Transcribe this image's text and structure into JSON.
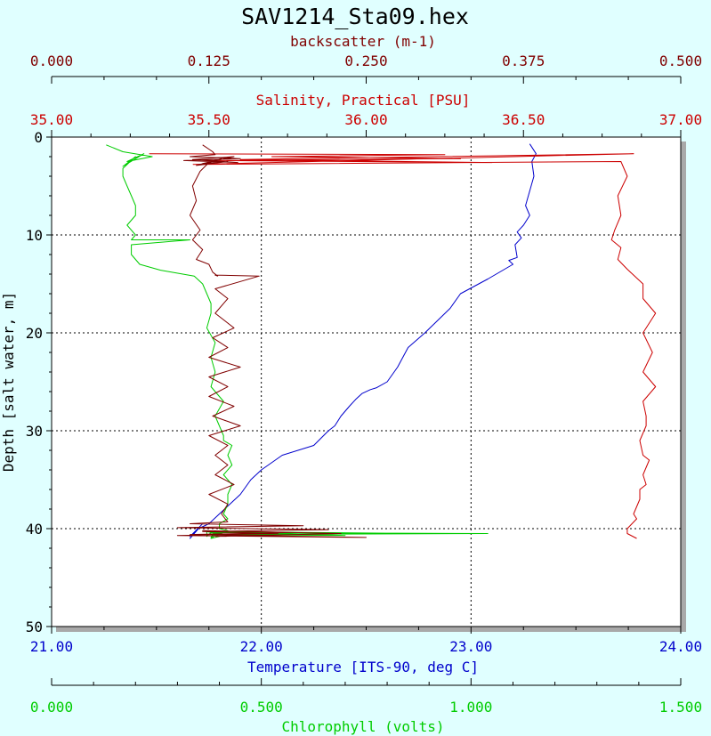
{
  "chart_data": {
    "type": "line",
    "title": "SAV1214_Sta09.hex",
    "colors": {
      "background": "#e0ffff",
      "plot_area": "#ffffff",
      "shadow": "#a9a9a9",
      "backscatter": "#800000",
      "salinity": "#cc0000",
      "temperature": "#0000cc",
      "chlorophyll": "#00cc00",
      "axis_text": "#000000"
    },
    "grid": true,
    "y_axis": {
      "label": "Depth [salt water, m]",
      "range": [
        0,
        50
      ],
      "inverted": true,
      "ticks": [
        "0",
        "10",
        "20",
        "30",
        "40",
        "50"
      ]
    },
    "x_axes": [
      {
        "id": "backscatter",
        "label": "backscatter (m-1)",
        "position": "top-outer",
        "range": [
          0,
          0.5
        ],
        "ticks": [
          "0.000",
          "0.125",
          "0.250",
          "0.375",
          "0.500"
        ]
      },
      {
        "id": "salinity",
        "label": "Salinity, Practical [PSU]",
        "position": "top-inner",
        "range": [
          35,
          37
        ],
        "ticks": [
          "35.00",
          "35.50",
          "36.00",
          "36.50",
          "37.00"
        ]
      },
      {
        "id": "temperature",
        "label": "Temperature [ITS-90, deg C]",
        "position": "bottom-inner",
        "range": [
          21,
          24
        ],
        "ticks": [
          "21.00",
          "22.00",
          "23.00",
          "24.00"
        ]
      },
      {
        "id": "chlorophyll",
        "label": "Chlorophyll (volts)",
        "position": "bottom-outer",
        "range": [
          0,
          1.5
        ],
        "ticks": [
          "0.000",
          "0.500",
          "1.000",
          "1.500"
        ]
      }
    ],
    "series": [
      {
        "axis": "temperature",
        "x": [
          23.28,
          23.31,
          23.29,
          23.3,
          23.28,
          23.26,
          23.28,
          23.25,
          23.22,
          23.24,
          23.21,
          23.22,
          23.18,
          23.2,
          23.08,
          22.95,
          22.9,
          22.78,
          22.7,
          22.65,
          22.6,
          22.55,
          22.52,
          22.48,
          22.45,
          22.42,
          22.38,
          22.35,
          22.32,
          22.25,
          22.1,
          22.0,
          21.95,
          21.9,
          21.85,
          21.8,
          21.75,
          21.7,
          21.68,
          21.66,
          21.7,
          21.66,
          21.72
        ],
        "y": [
          0.7,
          1.7,
          2.5,
          4.0,
          5.5,
          7.0,
          8.0,
          9.0,
          9.7,
          10.3,
          11.0,
          12.3,
          12.6,
          13.0,
          14.5,
          16.0,
          17.5,
          20.0,
          21.5,
          23.5,
          25.0,
          25.6,
          25.8,
          26.2,
          26.8,
          27.5,
          28.5,
          29.5,
          30.0,
          31.5,
          32.5,
          34.0,
          35.0,
          36.5,
          37.5,
          38.5,
          39.5,
          40.0,
          40.5,
          41.0,
          40.0,
          40.8,
          39.5
        ]
      },
      {
        "axis": "salinity",
        "x": [
          35.31,
          36.25,
          35.7,
          36.3,
          35.5,
          36.4,
          35.6,
          36.85,
          35.45,
          36.81,
          36.83,
          36.8,
          36.81,
          36.79,
          36.78,
          36.81,
          36.8,
          36.83,
          36.88,
          36.88,
          36.92,
          36.88,
          36.91,
          36.88,
          36.92,
          36.88,
          36.89,
          36.89,
          36.87,
          36.88,
          36.9,
          36.88,
          36.89,
          36.87,
          36.87,
          36.85,
          36.86,
          36.83,
          36.83,
          36.86
        ],
        "y": [
          1.7,
          1.8,
          2.0,
          2.2,
          2.4,
          2.6,
          2.3,
          1.7,
          2.8,
          2.5,
          4.0,
          6.0,
          8.0,
          9.5,
          10.5,
          11.3,
          12.5,
          13.5,
          15.0,
          16.5,
          18.0,
          20.0,
          22.0,
          24.0,
          25.5,
          27.0,
          28.5,
          29.5,
          31.0,
          32.5,
          33.0,
          34.5,
          35.5,
          36.0,
          37.0,
          38.5,
          39.0,
          40.0,
          40.5,
          41.0
        ]
      },
      {
        "axis": "chlorophyll",
        "x": [
          0.13,
          0.17,
          0.24,
          0.18,
          0.22,
          0.17,
          0.2,
          0.17,
          0.17,
          0.18,
          0.19,
          0.2,
          0.2,
          0.18,
          0.2,
          0.19,
          0.19,
          0.33,
          0.19,
          0.19,
          0.21,
          0.26,
          0.34,
          0.36,
          0.37,
          0.38,
          0.38,
          0.37,
          0.39,
          0.38,
          0.39,
          0.38,
          0.41,
          0.39,
          0.4,
          0.41,
          0.41,
          0.43,
          0.42,
          0.43,
          0.41,
          0.43,
          0.42,
          0.42,
          0.41,
          0.42,
          0.4,
          0.4,
          0.42,
          0.41,
          0.39,
          0.4,
          0.38,
          0.4,
          0.37,
          0.39,
          0.38,
          0.39,
          0.37,
          0.37,
          0.38,
          1.04,
          0.36,
          0.88,
          0.38,
          0.7,
          0.37
        ],
        "y": [
          0.8,
          1.5,
          2.0,
          2.5,
          1.7,
          3.0,
          2.0,
          3.2,
          4.0,
          5.0,
          6.0,
          7.0,
          8.0,
          9.0,
          10.0,
          10.5,
          10.5,
          10.5,
          11.0,
          12.0,
          13.0,
          13.6,
          14.2,
          15.0,
          16.0,
          17.0,
          18.0,
          19.5,
          21.0,
          22.5,
          24.0,
          25.5,
          27.0,
          28.5,
          29.5,
          30.5,
          31.0,
          31.5,
          32.5,
          33.5,
          34.5,
          35.5,
          36.5,
          37.5,
          38.5,
          39.0,
          39.5,
          40.0,
          40.2,
          40.4,
          40.6,
          40.8,
          41.0,
          40.4,
          40.7,
          40.2,
          40.9,
          40.5,
          40.3,
          40.8,
          40.4,
          40.5,
          40.6,
          40.5,
          40.3,
          40.7,
          40.6
        ]
      },
      {
        "axis": "backscatter",
        "x": [
          0.12,
          0.128,
          0.13,
          0.11,
          0.15,
          0.105,
          0.148,
          0.112,
          0.145,
          0.12,
          0.14,
          0.115,
          0.135,
          0.125,
          0.118,
          0.112,
          0.115,
          0.11,
          0.118,
          0.112,
          0.12,
          0.115,
          0.125,
          0.128,
          0.132,
          0.13,
          0.165,
          0.13,
          0.14,
          0.13,
          0.145,
          0.128,
          0.14,
          0.125,
          0.15,
          0.125,
          0.14,
          0.125,
          0.145,
          0.128,
          0.15,
          0.125,
          0.14,
          0.13,
          0.14,
          0.13,
          0.145,
          0.125,
          0.14,
          0.135,
          0.138,
          0.14,
          0.11,
          0.2,
          0.1,
          0.22,
          0.12,
          0.18,
          0.1,
          0.25,
          0.11,
          0.19,
          0.12,
          0.23,
          0.13
        ],
        "y": [
          0.8,
          1.5,
          1.8,
          2.0,
          2.2,
          2.4,
          2.6,
          2.3,
          2.0,
          2.7,
          2.5,
          2.9,
          2.2,
          2.6,
          3.5,
          5.0,
          6.5,
          8.0,
          9.5,
          10.5,
          11.5,
          12.5,
          13.0,
          13.8,
          14.2,
          14.1,
          14.2,
          15.5,
          16.5,
          18.0,
          19.5,
          20.5,
          21.5,
          22.5,
          23.5,
          24.5,
          25.5,
          26.5,
          27.5,
          28.5,
          29.5,
          30.5,
          31.5,
          32.5,
          33.5,
          34.5,
          35.5,
          36.5,
          37.5,
          38.5,
          39.0,
          39.3,
          39.5,
          39.7,
          39.9,
          40.1,
          40.3,
          40.5,
          40.7,
          40.9,
          40.6,
          40.4,
          40.2,
          40.5,
          40.8
        ]
      }
    ]
  }
}
